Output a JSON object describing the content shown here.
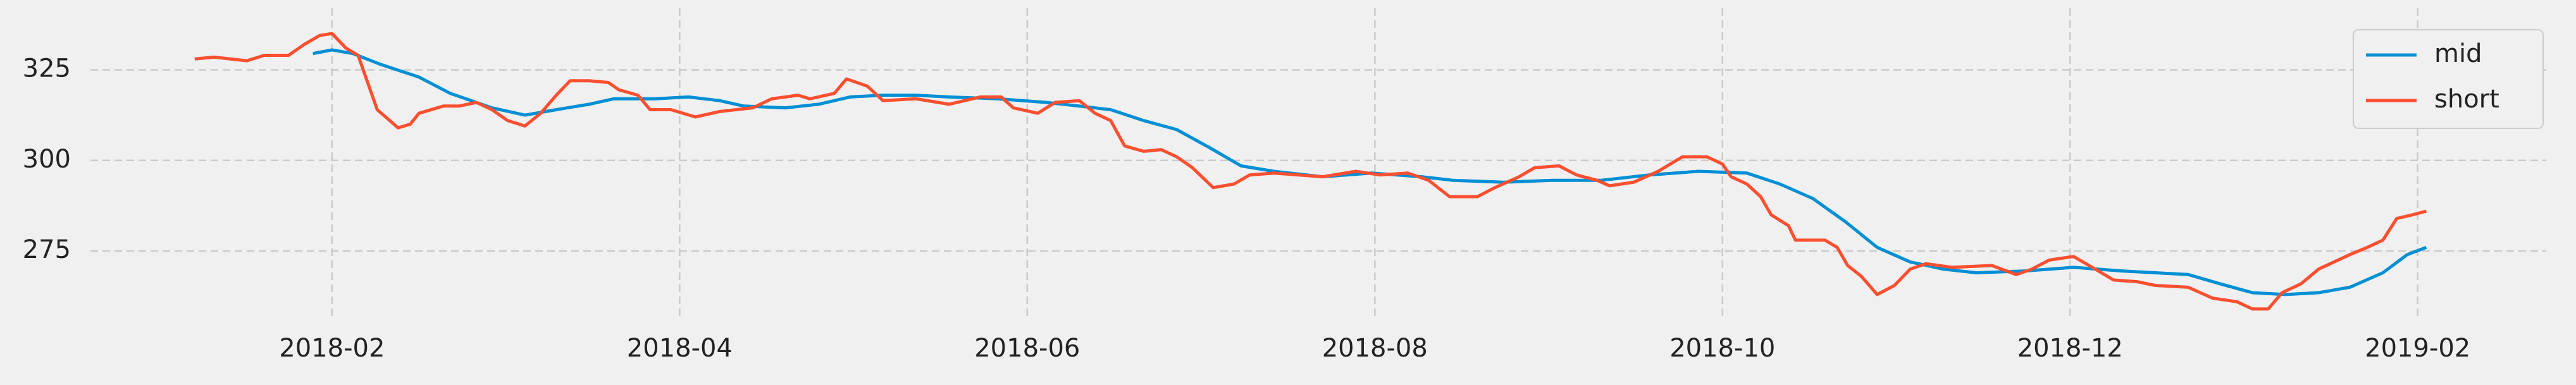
{
  "chart_data": {
    "type": "line",
    "series": [
      {
        "name": "mid",
        "color": "#008fd5",
        "x": [
          0.89,
          1.0,
          1.12,
          1.28,
          1.5,
          1.68,
          1.92,
          2.11,
          2.29,
          2.48,
          2.62,
          2.86,
          3.05,
          3.23,
          3.37,
          3.61,
          3.8,
          3.98,
          4.17,
          4.36,
          4.55,
          4.83,
          5.11,
          5.3,
          5.48,
          5.67,
          5.86,
          6.05,
          6.23,
          6.42,
          6.7,
          6.98,
          7.27,
          7.45,
          7.74,
          8.02,
          8.3,
          8.58,
          8.86,
          9.14,
          9.33,
          9.52,
          9.71,
          9.89,
          10.08,
          10.27,
          10.46,
          10.74,
          11.02,
          11.3,
          11.68,
          11.86,
          12.05,
          12.24,
          12.43,
          12.61,
          12.8,
          12.94,
          13.05
        ],
        "values": [
          329.5,
          330.5,
          329.5,
          326.5,
          323,
          318.5,
          314.5,
          312.5,
          314,
          315.5,
          317,
          317,
          317.5,
          316.5,
          315,
          314.5,
          315.5,
          317.5,
          318,
          318,
          317.5,
          317,
          316,
          315,
          314,
          311,
          308.5,
          303.5,
          298.5,
          297,
          295.5,
          296.5,
          295.5,
          294.5,
          294,
          294.5,
          294.5,
          296,
          297,
          296.5,
          293.5,
          289.5,
          283,
          276,
          272,
          270,
          269,
          269.5,
          270.5,
          269.5,
          268.5,
          266,
          263.5,
          263,
          263.5,
          265,
          269,
          274,
          276
        ]
      },
      {
        "name": "short",
        "color": "#fc4f30",
        "x": [
          0.21,
          0.32,
          0.51,
          0.61,
          0.75,
          0.84,
          0.93,
          1.0,
          1.08,
          1.15,
          1.26,
          1.38,
          1.45,
          1.5,
          1.64,
          1.73,
          1.83,
          1.92,
          2.01,
          2.11,
          2.2,
          2.29,
          2.37,
          2.48,
          2.59,
          2.65,
          2.76,
          2.83,
          2.95,
          3.09,
          3.23,
          3.42,
          3.53,
          3.68,
          3.75,
          3.89,
          3.96,
          4.08,
          4.17,
          4.36,
          4.55,
          4.73,
          4.85,
          4.92,
          5.06,
          5.16,
          5.3,
          5.39,
          5.48,
          5.56,
          5.67,
          5.77,
          5.86,
          5.95,
          6.07,
          6.19,
          6.28,
          6.42,
          6.56,
          6.7,
          6.89,
          7.03,
          7.19,
          7.31,
          7.43,
          7.59,
          7.69,
          7.83,
          7.92,
          8.06,
          8.16,
          8.28,
          8.35,
          8.49,
          8.63,
          8.77,
          8.91,
          9.0,
          9.05,
          9.14,
          9.22,
          9.28,
          9.38,
          9.42,
          9.59,
          9.66,
          9.72,
          9.8,
          9.89,
          9.99,
          10.08,
          10.17,
          10.32,
          10.55,
          10.69,
          10.78,
          10.88,
          11.02,
          11.11,
          11.25,
          11.39,
          11.49,
          11.68,
          11.82,
          11.96,
          12.05,
          12.14,
          12.22,
          12.33,
          12.43,
          12.61,
          12.71,
          12.8,
          12.88,
          12.97,
          13.05
        ],
        "values": [
          328,
          328.5,
          327.5,
          329,
          329,
          332,
          334.5,
          335,
          331,
          329,
          314,
          309,
          310,
          313,
          315,
          315,
          316,
          314,
          311,
          309.5,
          313,
          318,
          322,
          322,
          321.5,
          319.5,
          318,
          314,
          314,
          312,
          313.5,
          314.5,
          317,
          318,
          317,
          318.5,
          322.5,
          320.5,
          316.5,
          317,
          315.5,
          317.5,
          317.5,
          314.5,
          313,
          316,
          316.5,
          313,
          311,
          304,
          302.5,
          303,
          301,
          298,
          292.5,
          293.5,
          296,
          296.5,
          296,
          295.5,
          297,
          296,
          296.5,
          294.5,
          290,
          290,
          292.5,
          295.5,
          298,
          298.5,
          296,
          294.5,
          293,
          294,
          297,
          301,
          301,
          299,
          295.5,
          293.5,
          290,
          285,
          282,
          278,
          278,
          276,
          271,
          268,
          263,
          265.5,
          270,
          271.5,
          270.5,
          271,
          268.5,
          270,
          272.5,
          273.5,
          271,
          267,
          266.5,
          265.5,
          265,
          262,
          261,
          259,
          259,
          263.5,
          266,
          270,
          274,
          276,
          278,
          284,
          285,
          286
        ]
      }
    ],
    "xlim": [
      -0.39,
      13.74
    ],
    "xticks": [
      {
        "value": 1,
        "label": "2018-02"
      },
      {
        "value": 3,
        "label": "2018-04"
      },
      {
        "value": 5,
        "label": "2018-06"
      },
      {
        "value": 7,
        "label": "2018-08"
      },
      {
        "value": 9,
        "label": "2018-10"
      },
      {
        "value": 11,
        "label": "2018-12"
      },
      {
        "value": 13,
        "label": "2019-02"
      }
    ],
    "ylim": [
      256,
      342
    ],
    "yticks": [
      275,
      300,
      325
    ],
    "grid": true,
    "legend": "upper right"
  }
}
